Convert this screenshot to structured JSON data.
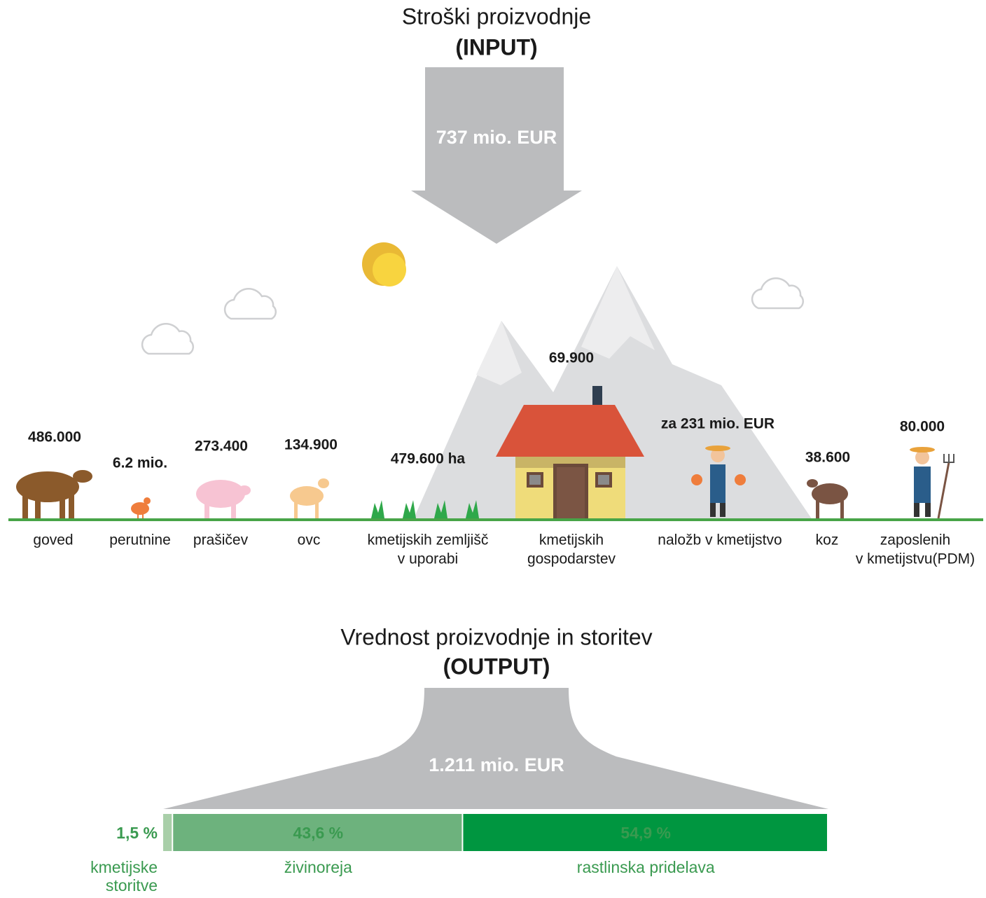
{
  "input": {
    "title": "Stroški proizvodnje",
    "subtitle": "(INPUT)",
    "amount": "737 mio. EUR"
  },
  "items": [
    {
      "value": "486.000",
      "label": [
        "goved"
      ]
    },
    {
      "value": "6.2 mio.",
      "label": [
        "perutnine"
      ]
    },
    {
      "value": "273.400",
      "label": [
        "prašičev"
      ]
    },
    {
      "value": "134.900",
      "label": [
        "ovc"
      ]
    },
    {
      "value": "479.600 ha",
      "label": [
        "kmetijskih zemljišč",
        "v uporabi"
      ]
    },
    {
      "value": "69.900",
      "label": [
        "kmetijskih",
        "gospodarstev"
      ]
    },
    {
      "value": "za 231 mio. EUR",
      "label": [
        "naložb v kmetijstvo"
      ]
    },
    {
      "value": "38.600",
      "label": [
        "koz"
      ]
    },
    {
      "value": "80.000",
      "label": [
        "zaposlenih",
        "v kmetijstvu(PDM)"
      ]
    }
  ],
  "output": {
    "title": "Vrednost proizvodnje in storitev",
    "subtitle": "(OUTPUT)",
    "amount": "1.211 mio. EUR",
    "segments": [
      {
        "value": 1.5,
        "label": "1,5 %",
        "name": [
          "kmetijske",
          "storitve"
        ],
        "color": "#a9cfa9"
      },
      {
        "value": 43.6,
        "label": "43,6 %",
        "name": [
          "živinoreja"
        ],
        "color": "#6db27d"
      },
      {
        "value": 54.9,
        "label": "54,9 %",
        "name": [
          "rastlinska pridelava"
        ],
        "color": "#009640"
      }
    ]
  }
}
